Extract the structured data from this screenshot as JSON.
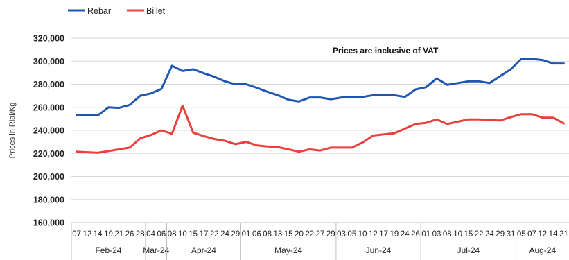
{
  "chart_data": {
    "type": "line",
    "ylabel": "Prices in Rial/Kg",
    "annotation": "Prices are inclusive  of VAT",
    "ylim": [
      160000,
      320000
    ],
    "yticks": [
      160000,
      180000,
      200000,
      220000,
      240000,
      260000,
      280000,
      300000,
      320000
    ],
    "ytick_labels": [
      "160,000",
      "180,000",
      "200,000",
      "220,000",
      "240,000",
      "260,000",
      "280,000",
      "300,000",
      "320,000"
    ],
    "x": [
      "07",
      "12",
      "14",
      "19",
      "21",
      "26",
      "28",
      "04",
      "06",
      "08",
      "10",
      "15",
      "17",
      "22",
      "24",
      "29",
      "01",
      "06",
      "08",
      "13",
      "15",
      "20",
      "22",
      "27",
      "29",
      "03",
      "05",
      "10",
      "12",
      "17",
      "19",
      "24",
      "26",
      "01",
      "03",
      "08",
      "10",
      "15",
      "22",
      "24",
      "29",
      "31",
      "05",
      "07",
      "12",
      "14",
      "21"
    ],
    "months": [
      {
        "label": "Feb-24",
        "start": 0,
        "end": 6
      },
      {
        "label": "Mar-24",
        "start": 7,
        "end": 8
      },
      {
        "label": "Apr-24",
        "start": 9,
        "end": 15
      },
      {
        "label": "May-24",
        "start": 16,
        "end": 24
      },
      {
        "label": "Jun-24",
        "start": 25,
        "end": 32
      },
      {
        "label": "Jul-24",
        "start": 33,
        "end": 41
      },
      {
        "label": "Aug-24",
        "start": 42,
        "end": 46
      }
    ],
    "legend_position": "top-left",
    "grid": "horizontal",
    "series": [
      {
        "name": "Rebar",
        "color": "#1f57b0",
        "values": [
          253000,
          253000,
          253000,
          260000,
          259500,
          262000,
          270000,
          272000,
          276000,
          296000,
          291500,
          293000,
          289500,
          286500,
          282500,
          280000,
          280000,
          277000,
          273500,
          270500,
          266500,
          265000,
          268500,
          268500,
          267000,
          268500,
          269000,
          269000,
          270500,
          271000,
          270500,
          269000,
          275500,
          277500,
          285000,
          279500,
          281000,
          282500,
          282500,
          281000,
          287000,
          293000,
          302000,
          302000,
          301000,
          298000,
          298000
        ]
      },
      {
        "name": "Billet",
        "color": "#e8413c",
        "values": [
          221500,
          221000,
          220500,
          222000,
          223500,
          225000,
          233000,
          236000,
          240000,
          237000,
          261500,
          238000,
          235000,
          232500,
          231000,
          228000,
          230000,
          227000,
          226000,
          225500,
          223500,
          221500,
          223500,
          222500,
          225000,
          225000,
          225000,
          229500,
          235500,
          236500,
          237500,
          241500,
          245500,
          246500,
          249500,
          245500,
          247500,
          249500,
          249500,
          249000,
          248500,
          251500,
          254000,
          254000,
          251000,
          251000,
          246000
        ]
      }
    ]
  }
}
